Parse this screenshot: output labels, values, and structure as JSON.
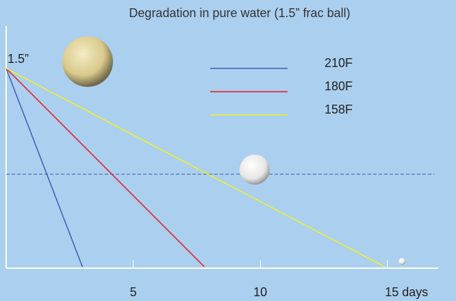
{
  "chart_data": {
    "type": "line",
    "title": "Degradation in pure water (1.5” frac ball)",
    "xlim": [
      0,
      17
    ],
    "xticks": [
      5,
      10,
      {
        "value": 15,
        "label": "15 days"
      }
    ],
    "ylim": [
      0,
      1.8
    ],
    "yticks": [
      {
        "value": 1.5,
        "label": "1.5”"
      }
    ],
    "reference_line": {
      "value": 0.7,
      "color": "#3b5fa8"
    },
    "series": [
      {
        "name": "210F",
        "color": "#3a5db0",
        "x": [
          0,
          3
        ],
        "values": [
          1.5,
          0
        ]
      },
      {
        "name": "180F",
        "color": "#e8141e",
        "x": [
          0,
          7.8
        ],
        "values": [
          1.5,
          0
        ]
      },
      {
        "name": "158F",
        "color": "#f4f21c",
        "x": [
          0,
          14.9
        ],
        "values": [
          1.5,
          0
        ]
      }
    ]
  }
}
